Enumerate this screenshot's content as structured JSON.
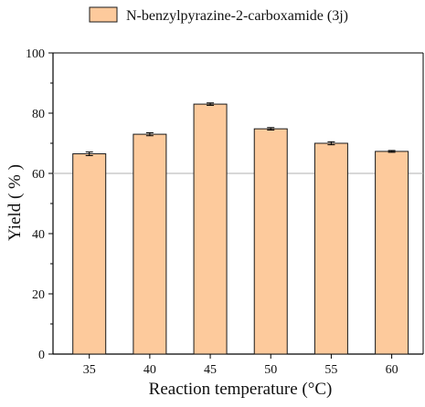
{
  "chart_data": {
    "type": "bar",
    "categories": [
      "35",
      "40",
      "45",
      "50",
      "55",
      "60"
    ],
    "series": [
      {
        "name": "N-benzylpyrazine-2-carboxamide (3j)",
        "values": [
          66.5,
          73.0,
          83.0,
          74.8,
          70.0,
          67.3
        ],
        "errors": [
          0.6,
          0.5,
          0.4,
          0.4,
          0.5,
          0.3
        ]
      }
    ],
    "title": "",
    "xlabel": "Reaction temperature (°C)",
    "ylabel": "Yield ( % )",
    "ylim": [
      0,
      100
    ],
    "yticks": [
      "0",
      "20",
      "40",
      "60",
      "80",
      "100"
    ],
    "reference_line": 60,
    "grid": false,
    "legend_position": "top-center",
    "colors": {
      "bar_fill": "#FDCA9C",
      "bar_stroke": "#1a1a1a",
      "reference_line": "#b0b0b0",
      "axis": "#000000"
    }
  }
}
